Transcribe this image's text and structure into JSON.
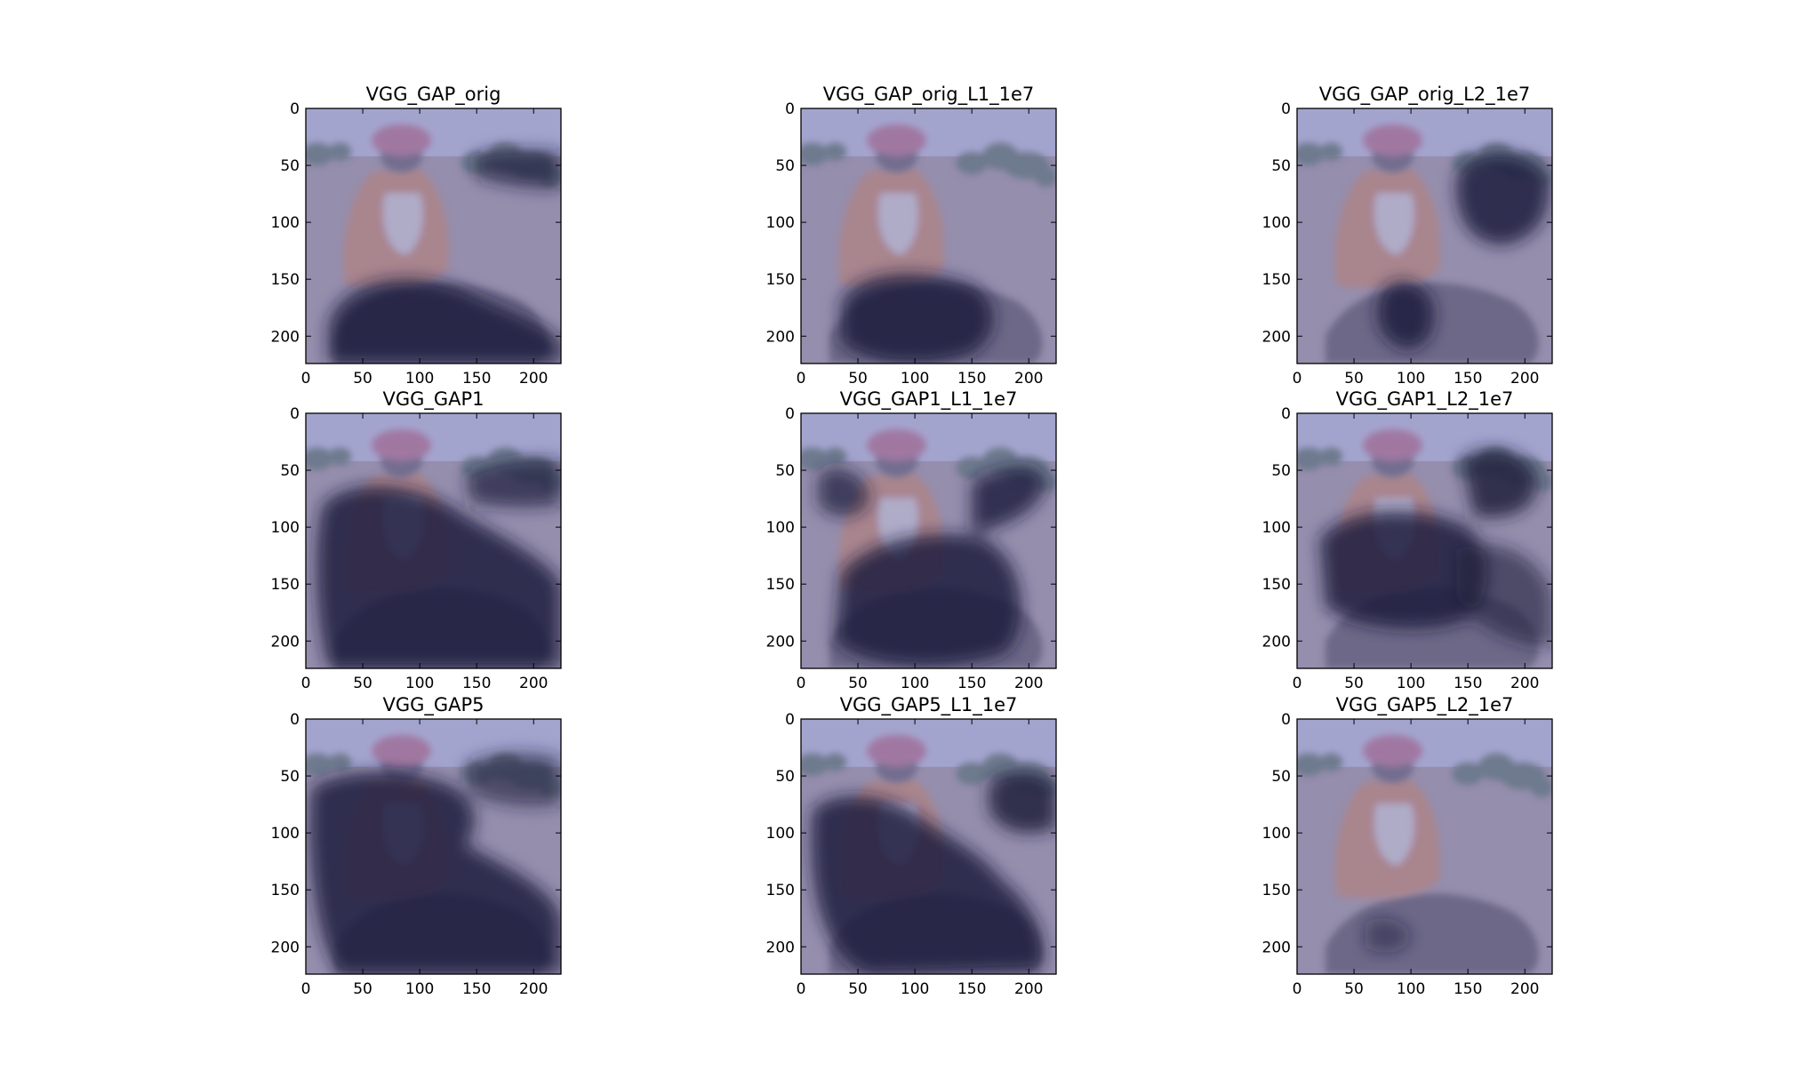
{
  "chart_data": [
    {
      "type": "heatmap",
      "title": "VGG_GAP_orig",
      "xlim": [
        0,
        224
      ],
      "ylim": [
        224,
        0
      ],
      "xticks": [
        0,
        50,
        100,
        150,
        200
      ],
      "yticks": [
        0,
        50,
        100,
        150,
        200
      ],
      "background": "photo-woman-hoeing-field",
      "overlay_colormap": "jet",
      "grid": false
    },
    {
      "type": "heatmap",
      "title": "VGG_GAP_orig_L1_1e7",
      "xlim": [
        0,
        224
      ],
      "ylim": [
        224,
        0
      ],
      "xticks": [
        0,
        50,
        100,
        150,
        200
      ],
      "yticks": [
        0,
        50,
        100,
        150,
        200
      ],
      "background": "photo-woman-hoeing-field",
      "overlay_colormap": "jet",
      "grid": false
    },
    {
      "type": "heatmap",
      "title": "VGG_GAP_orig_L2_1e7",
      "xlim": [
        0,
        224
      ],
      "ylim": [
        224,
        0
      ],
      "xticks": [
        0,
        50,
        100,
        150,
        200
      ],
      "yticks": [
        0,
        50,
        100,
        150,
        200
      ],
      "background": "photo-woman-hoeing-field",
      "overlay_colormap": "jet",
      "grid": false
    },
    {
      "type": "heatmap",
      "title": "VGG_GAP1",
      "xlim": [
        0,
        224
      ],
      "ylim": [
        224,
        0
      ],
      "xticks": [
        0,
        50,
        100,
        150,
        200
      ],
      "yticks": [
        0,
        50,
        100,
        150,
        200
      ],
      "background": "photo-woman-hoeing-field",
      "overlay_colormap": "jet",
      "grid": false
    },
    {
      "type": "heatmap",
      "title": "VGG_GAP1_L1_1e7",
      "xlim": [
        0,
        224
      ],
      "ylim": [
        224,
        0
      ],
      "xticks": [
        0,
        50,
        100,
        150,
        200
      ],
      "yticks": [
        0,
        50,
        100,
        150,
        200
      ],
      "background": "photo-woman-hoeing-field",
      "overlay_colormap": "jet",
      "grid": false
    },
    {
      "type": "heatmap",
      "title": "VGG_GAP1_L2_1e7",
      "xlim": [
        0,
        224
      ],
      "ylim": [
        224,
        0
      ],
      "xticks": [
        0,
        50,
        100,
        150,
        200
      ],
      "yticks": [
        0,
        50,
        100,
        150,
        200
      ],
      "background": "photo-woman-hoeing-field",
      "overlay_colormap": "jet",
      "grid": false
    },
    {
      "type": "heatmap",
      "title": "VGG_GAP5",
      "xlim": [
        0,
        224
      ],
      "ylim": [
        224,
        0
      ],
      "xticks": [
        0,
        50,
        100,
        150,
        200
      ],
      "yticks": [
        0,
        50,
        100,
        150,
        200
      ],
      "background": "photo-woman-hoeing-field",
      "overlay_colormap": "jet",
      "grid": false
    },
    {
      "type": "heatmap",
      "title": "VGG_GAP5_L1_1e7",
      "xlim": [
        0,
        224
      ],
      "ylim": [
        224,
        0
      ],
      "xticks": [
        0,
        50,
        100,
        150,
        200
      ],
      "yticks": [
        0,
        50,
        100,
        150,
        200
      ],
      "background": "photo-woman-hoeing-field",
      "overlay_colormap": "jet",
      "grid": false
    },
    {
      "type": "heatmap",
      "title": "VGG_GAP5_L2_1e7",
      "xlim": [
        0,
        224
      ],
      "ylim": [
        224,
        0
      ],
      "xticks": [
        0,
        50,
        100,
        150,
        200
      ],
      "yticks": [
        0,
        50,
        100,
        150,
        200
      ],
      "background": "photo-woman-hoeing-field",
      "overlay_colormap": "jet",
      "grid": false
    }
  ],
  "colors": {
    "overlay_tint": "#8c8cc4",
    "dark_region": "#1c1c3c",
    "ground": "#a39088",
    "soil_dark": "#3a2e28",
    "sky": "#c8cbe0",
    "dress_orange": "#d87a38",
    "dress_white": "#e8e0d0",
    "trees": "#3e5c38"
  }
}
